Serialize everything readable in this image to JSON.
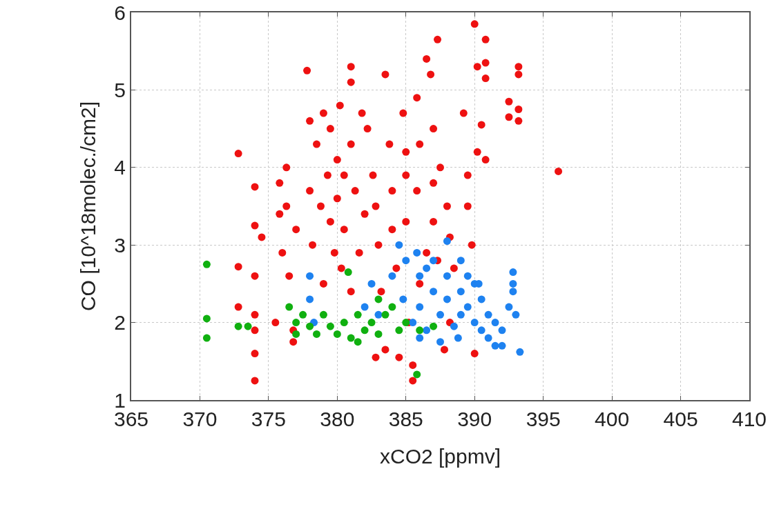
{
  "chart_data": {
    "type": "scatter",
    "xlabel": "xCO2 [ppmv]",
    "ylabel": "CO [10^18molec./cm2]",
    "xlim": [
      365,
      410
    ],
    "xticks": [
      365,
      370,
      375,
      380,
      385,
      390,
      395,
      400,
      405,
      410
    ],
    "ylim": [
      1,
      6
    ],
    "yticks": [
      1,
      2,
      3,
      4,
      5,
      6
    ],
    "grid": true,
    "marker": "circle",
    "series": [
      {
        "color": "#ee1111",
        "x": [
          372.8,
          372.8,
          372.8,
          374,
          374,
          374,
          374,
          374,
          374,
          374,
          374.5,
          375.5,
          375.8,
          375.8,
          376,
          376.3,
          376.3,
          376.5,
          376.8,
          376.8,
          377,
          377.8,
          378,
          378,
          378.2,
          378.5,
          378.8,
          379,
          379,
          379.3,
          379.5,
          379.5,
          379.8,
          380,
          380,
          380.2,
          380.3,
          380.5,
          380.5,
          381,
          381,
          381,
          381,
          381.3,
          381.6,
          381.8,
          382,
          382.2,
          382.6,
          382.8,
          383,
          383.2,
          383.5,
          383.5,
          383.8,
          384,
          384.3,
          384.5,
          384.8,
          385,
          385,
          385.2,
          385.5,
          385.5,
          385.8,
          385.8,
          386,
          386,
          386.5,
          386.8,
          387,
          387,
          387,
          387.3,
          387.3,
          387.5,
          387.8,
          388,
          388.2,
          388.2,
          389.2,
          389.5,
          389.5,
          389.8,
          390,
          390,
          390.2,
          390.2,
          390.5,
          390.8,
          390.8,
          390.8,
          390.8,
          392.5,
          392.5,
          393.2,
          393.2,
          393.2,
          393.2,
          396.1,
          385,
          384,
          382.8,
          386.5,
          388.5
        ],
        "values": [
          4.18,
          2.72,
          2.2,
          3.75,
          3.25,
          2.6,
          2.1,
          1.9,
          1.6,
          1.25,
          3.1,
          2.0,
          3.8,
          3.4,
          2.9,
          4.0,
          3.5,
          2.6,
          1.9,
          1.75,
          3.2,
          5.25,
          4.6,
          3.7,
          3.0,
          4.3,
          3.5,
          4.7,
          2.5,
          3.9,
          4.5,
          3.3,
          2.9,
          4.1,
          3.6,
          4.8,
          2.7,
          3.9,
          3.2,
          5.3,
          5.1,
          4.3,
          2.4,
          3.7,
          2.9,
          4.7,
          3.4,
          4.5,
          3.9,
          1.55,
          3.0,
          2.4,
          5.2,
          1.65,
          4.3,
          3.7,
          2.7,
          1.55,
          4.7,
          4.2,
          3.3,
          2.0,
          1.25,
          1.45,
          4.9,
          3.7,
          4.3,
          2.5,
          5.4,
          5.2,
          4.5,
          3.8,
          3.3,
          5.65,
          2.8,
          4.0,
          1.65,
          3.5,
          3.1,
          2.0,
          4.7,
          3.9,
          3.5,
          3.0,
          5.85,
          1.6,
          5.3,
          4.2,
          4.55,
          5.65,
          5.35,
          5.15,
          4.1,
          4.65,
          4.85,
          5.3,
          5.2,
          4.75,
          4.6,
          3.95,
          3.9,
          3.2,
          3.5,
          2.9,
          2.7
        ]
      },
      {
        "color": "#1e82f0",
        "x": [
          378,
          378,
          378.3,
          382,
          382.5,
          383,
          384,
          384.5,
          385,
          385.5,
          386,
          386,
          386.5,
          387,
          387,
          387.5,
          387.5,
          388,
          388,
          388,
          388.5,
          389,
          389,
          389,
          389.5,
          389.5,
          390,
          390,
          390.5,
          390.5,
          391,
          391,
          391.5,
          391.5,
          392,
          392,
          392.5,
          392.8,
          392.8,
          392.8,
          393,
          393.3,
          386.5,
          385.8,
          384.8,
          388.8,
          390.3,
          386
        ],
        "values": [
          2.6,
          2.3,
          2.0,
          2.2,
          2.5,
          2.1,
          2.6,
          3.0,
          2.8,
          2.0,
          2.6,
          2.2,
          1.9,
          2.8,
          2.4,
          2.1,
          1.75,
          3.05,
          2.6,
          2.3,
          1.95,
          2.8,
          2.4,
          2.1,
          2.6,
          2.2,
          2.5,
          2.0,
          2.3,
          1.9,
          2.1,
          1.8,
          2.0,
          1.7,
          1.9,
          1.7,
          2.2,
          2.5,
          2.65,
          2.4,
          2.1,
          1.62,
          2.7,
          2.9,
          2.3,
          1.8,
          2.5,
          1.8
        ]
      },
      {
        "color": "#10b010",
        "x": [
          370.5,
          370.5,
          370.5,
          372.8,
          373.5,
          376.5,
          377,
          377,
          377.5,
          378,
          378.5,
          379,
          379.5,
          380,
          380.5,
          380.8,
          381,
          381.5,
          382,
          382.5,
          383,
          383.5,
          384,
          384.5,
          385,
          385.8,
          386,
          387,
          381.5,
          383
        ],
        "values": [
          2.75,
          2.05,
          1.8,
          1.95,
          1.95,
          2.2,
          2.0,
          1.85,
          2.1,
          1.95,
          1.85,
          2.1,
          1.95,
          1.85,
          2.0,
          2.65,
          1.8,
          2.1,
          1.9,
          2.0,
          1.85,
          2.1,
          2.2,
          1.9,
          2.0,
          1.33,
          1.9,
          1.95,
          1.75,
          2.3
        ]
      }
    ]
  }
}
